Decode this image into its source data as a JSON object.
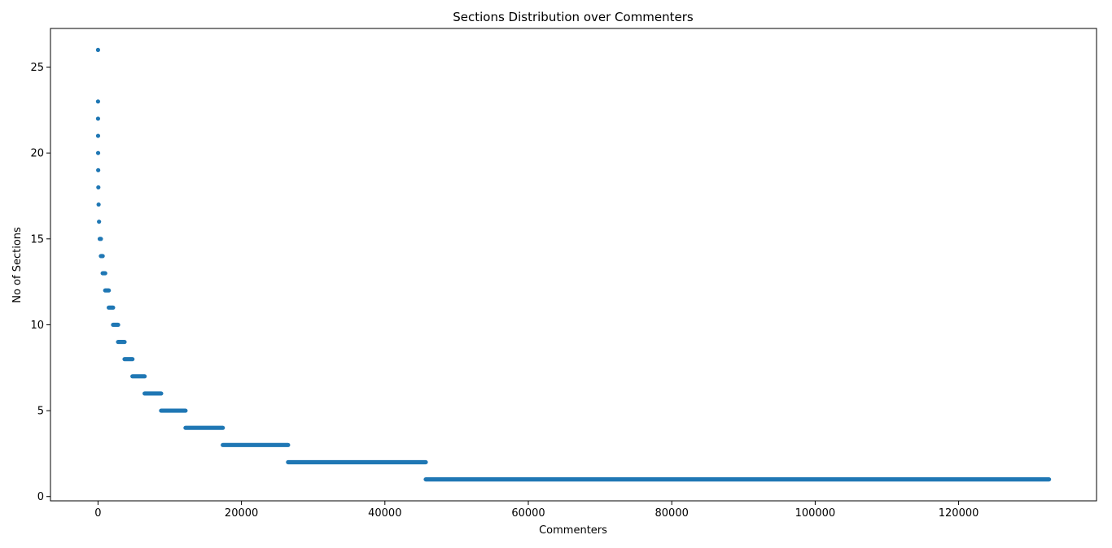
{
  "chart_data": {
    "type": "scatter",
    "title": "Sections Distribution over Commenters",
    "xlabel": "Commenters",
    "ylabel": "No of Sections",
    "xlim": [
      -6630,
      139230
    ],
    "ylim": [
      -0.25,
      27.25
    ],
    "xticks": [
      0,
      20000,
      40000,
      60000,
      80000,
      100000,
      120000
    ],
    "yticks": [
      0,
      5,
      10,
      15,
      20,
      25
    ],
    "grid": false,
    "legend": "none",
    "marker_color": "#1f77b4",
    "series": [
      {
        "levels": [
          {
            "y": 26,
            "x_start": 0,
            "x_end": 0
          },
          {
            "y": 23,
            "x_start": 1,
            "x_end": 1
          },
          {
            "y": 22,
            "x_start": 2,
            "x_end": 5
          },
          {
            "y": 21,
            "x_start": 6,
            "x_end": 12
          },
          {
            "y": 20,
            "x_start": 13,
            "x_end": 25
          },
          {
            "y": 19,
            "x_start": 26,
            "x_end": 45
          },
          {
            "y": 18,
            "x_start": 46,
            "x_end": 80
          },
          {
            "y": 17,
            "x_start": 81,
            "x_end": 140
          },
          {
            "y": 16,
            "x_start": 141,
            "x_end": 240
          },
          {
            "y": 15,
            "x_start": 241,
            "x_end": 400
          },
          {
            "y": 14,
            "x_start": 401,
            "x_end": 650
          },
          {
            "y": 13,
            "x_start": 651,
            "x_end": 1000
          },
          {
            "y": 12,
            "x_start": 1001,
            "x_end": 1500
          },
          {
            "y": 11,
            "x_start": 1501,
            "x_end": 2100
          },
          {
            "y": 10,
            "x_start": 2101,
            "x_end": 2800
          },
          {
            "y": 9,
            "x_start": 2801,
            "x_end": 3700
          },
          {
            "y": 8,
            "x_start": 3701,
            "x_end": 4800
          },
          {
            "y": 7,
            "x_start": 4801,
            "x_end": 6500
          },
          {
            "y": 6,
            "x_start": 6501,
            "x_end": 8800
          },
          {
            "y": 5,
            "x_start": 8801,
            "x_end": 12200
          },
          {
            "y": 4,
            "x_start": 12201,
            "x_end": 17400
          },
          {
            "y": 3,
            "x_start": 17401,
            "x_end": 26500
          },
          {
            "y": 2,
            "x_start": 26501,
            "x_end": 45700
          },
          {
            "y": 1,
            "x_start": 45701,
            "x_end": 132600
          }
        ]
      }
    ]
  }
}
